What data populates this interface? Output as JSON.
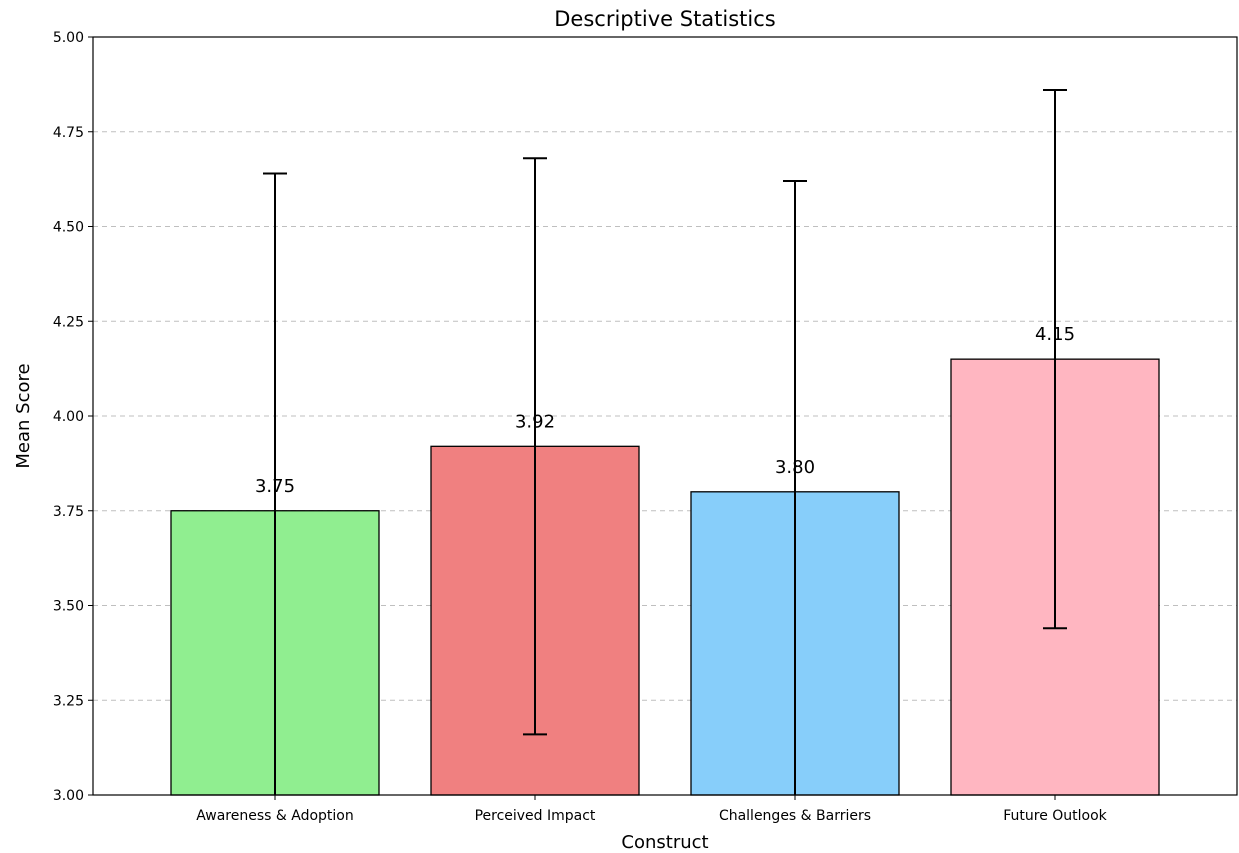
{
  "chart_data": {
    "type": "bar",
    "title": "Descriptive Statistics",
    "xlabel": "Construct",
    "ylabel": "Mean Score",
    "categories": [
      "Awareness & Adoption",
      "Perceived Impact",
      "Challenges & Barriers",
      "Future Outlook"
    ],
    "values": [
      3.75,
      3.92,
      3.8,
      4.15
    ],
    "value_labels": [
      "3.75",
      "3.92",
      "3.80",
      "4.15"
    ],
    "error": [
      0.89,
      0.76,
      0.82,
      0.71
    ],
    "colors": [
      "#90ee90",
      "#f08080",
      "#87cefa",
      "#ffb6c1"
    ],
    "ylim": [
      3.0,
      5.0
    ],
    "yticks": [
      3.0,
      3.25,
      3.5,
      3.75,
      4.0,
      4.25,
      4.5,
      4.75,
      5.0
    ],
    "ytick_labels": [
      "3.00",
      "3.25",
      "3.50",
      "3.75",
      "4.00",
      "4.25",
      "4.50",
      "4.75",
      "5.00"
    ],
    "grid": "y-dashed",
    "legend": "none"
  }
}
